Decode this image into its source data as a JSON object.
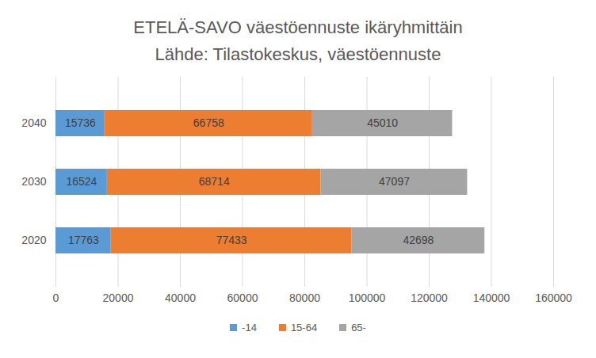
{
  "chart_data": {
    "type": "bar",
    "orientation": "horizontal",
    "stacked": true,
    "title": "ETELÄ-SAVO väestöennuste ikäryhmittäin",
    "subtitle": "Lähde: Tilastokeskus, väestöennuste",
    "categories": [
      "2040",
      "2030",
      "2020"
    ],
    "series": [
      {
        "name": "-14",
        "color": "#5b9bd5",
        "values": [
          15736,
          16524,
          17763
        ]
      },
      {
        "name": "15-64",
        "color": "#ed7d31",
        "values": [
          66758,
          68714,
          77433
        ]
      },
      {
        "name": "65-",
        "color": "#a5a5a5",
        "values": [
          45010,
          47097,
          42698
        ]
      }
    ],
    "xlim": [
      0,
      160000
    ],
    "xticks": [
      0,
      20000,
      40000,
      60000,
      80000,
      100000,
      120000,
      140000,
      160000
    ],
    "grid": true,
    "data_labels": true,
    "legend": "bottom"
  }
}
